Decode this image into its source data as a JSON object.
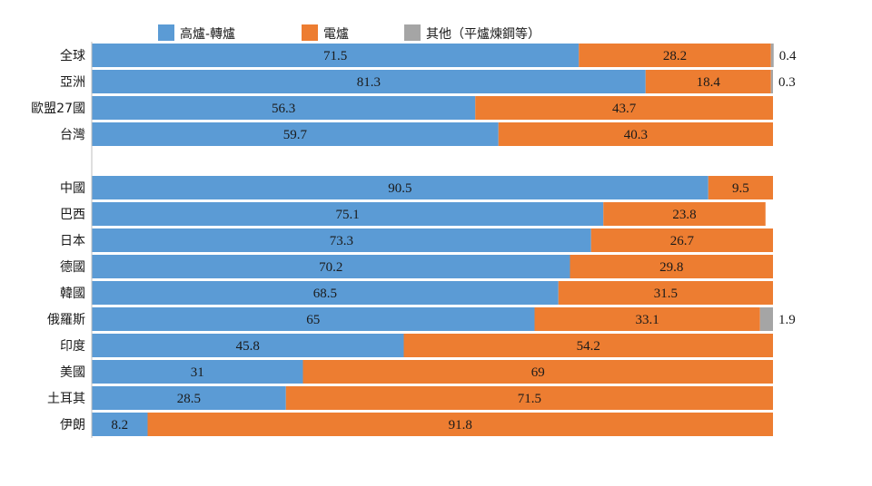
{
  "chart_data": {
    "type": "bar",
    "orientation": "horizontal",
    "stacked": true,
    "percent_stacked": true,
    "legend_position": "top",
    "grid": false,
    "xlim": [
      0,
      100
    ],
    "categories": [
      "全球",
      "亞洲",
      "歐盟27國",
      "台灣",
      "中國",
      "巴西",
      "日本",
      "德國",
      "韓國",
      "俄羅斯",
      "印度",
      "美國",
      "土耳其",
      "伊朗"
    ],
    "group_break_after": "台灣",
    "series": [
      {
        "name": "高爐-轉爐",
        "color": "#5b9bd5",
        "values": [
          71.5,
          81.3,
          56.3,
          59.7,
          90.5,
          75.1,
          73.3,
          70.2,
          68.5,
          65,
          45.8,
          31,
          28.5,
          8.2
        ],
        "labels": [
          "71.5",
          "81.3",
          "56.3",
          "59.7",
          "90.5",
          "75.1",
          "73.3",
          "70.2",
          "68.5",
          "65",
          "45.8",
          "31",
          "28.5",
          "8.2"
        ]
      },
      {
        "name": "電爐",
        "color": "#ed7d31",
        "values": [
          28.2,
          18.4,
          43.7,
          40.3,
          9.5,
          23.8,
          26.7,
          29.8,
          31.5,
          33.1,
          54.2,
          69,
          71.5,
          91.8
        ],
        "labels": [
          "28.2",
          "18.4",
          "43.7",
          "40.3",
          "9.5",
          "23.8",
          "26.7",
          "29.8",
          "31.5",
          "33.1",
          "54.2",
          "69",
          "71.5",
          "91.8"
        ]
      },
      {
        "name": "其他（平爐煉鋼等）",
        "color": "#a5a5a5",
        "values": [
          0.4,
          0.3,
          0,
          0,
          0,
          0,
          0,
          0,
          0,
          1.9,
          0,
          0,
          0,
          0
        ],
        "labels": [
          "0.4",
          "0.3",
          "",
          "",
          "",
          "",
          "",
          "",
          "",
          "1.9",
          "",
          "",
          "",
          ""
        ]
      }
    ]
  }
}
